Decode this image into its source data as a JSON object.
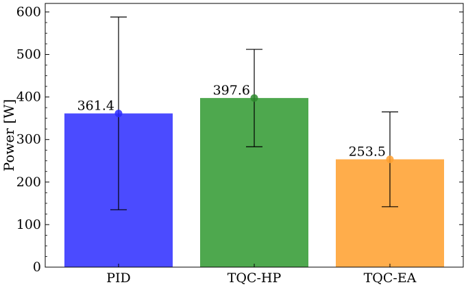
{
  "chart_data": {
    "type": "bar",
    "categories": [
      "PID",
      "TQC-HP",
      "TQC-EA"
    ],
    "values": [
      361.4,
      397.6,
      253.5
    ],
    "data_labels": [
      "361.4",
      "397.6",
      "253.5"
    ],
    "error_low": [
      135,
      283,
      142
    ],
    "error_high": [
      588,
      512,
      365
    ],
    "colors": [
      "#4b4bff",
      "#4ea84e",
      "#ffad4b"
    ],
    "marker_colors": [
      "#2b2bff",
      "#2e8b2e",
      "#ffa030"
    ],
    "ylabel": "Power [W]",
    "xlabel": "",
    "ylim": [
      0,
      620
    ],
    "yticks": [
      0,
      100,
      200,
      300,
      400,
      500,
      600
    ],
    "grid": false,
    "legend": "none"
  }
}
